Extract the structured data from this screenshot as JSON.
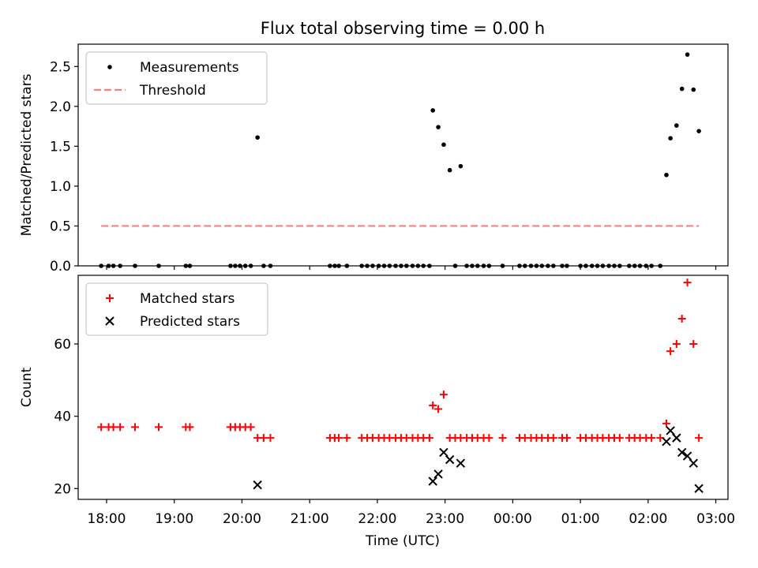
{
  "figure": {
    "title": "Flux total observing time = 0.00 h",
    "xlabel": "Time (UTC)",
    "x_ticks": [
      "18:00",
      "19:00",
      "20:00",
      "21:00",
      "22:00",
      "23:00",
      "00:00",
      "01:00",
      "02:00",
      "03:00"
    ]
  },
  "colors": {
    "threshold": "#ff7f7f",
    "matched": "#ff0000",
    "predicted": "#000000",
    "measurement": "#000000"
  },
  "chart_data": [
    {
      "type": "scatter",
      "ylabel": "Matched/Predicted stars",
      "xlim_hours": [
        17.58,
        27.18
      ],
      "ylim": [
        0,
        2.78
      ],
      "y_ticks": [
        0.0,
        0.5,
        1.0,
        1.5,
        2.0,
        2.5
      ],
      "y_tick_labels": [
        "0.0",
        "0.5",
        "1.0",
        "1.5",
        "2.0",
        "2.5"
      ],
      "legend": {
        "placement": "upper-left",
        "entries": [
          "Measurements",
          "Threshold"
        ]
      },
      "series": [
        {
          "name": "Measurements",
          "marker": "dot",
          "points": [
            [
              17.92,
              0
            ],
            [
              18.03,
              0
            ],
            [
              18.1,
              0
            ],
            [
              18.2,
              0
            ],
            [
              18.42,
              0
            ],
            [
              18.77,
              0
            ],
            [
              19.17,
              0
            ],
            [
              19.23,
              0
            ],
            [
              19.83,
              0
            ],
            [
              19.9,
              0
            ],
            [
              19.97,
              0
            ],
            [
              20.05,
              0
            ],
            [
              20.13,
              0
            ],
            [
              20.23,
              1.61
            ],
            [
              20.32,
              0
            ],
            [
              20.42,
              0
            ],
            [
              21.3,
              0
            ],
            [
              21.37,
              0
            ],
            [
              21.43,
              0
            ],
            [
              21.55,
              0
            ],
            [
              21.77,
              0
            ],
            [
              21.85,
              0
            ],
            [
              21.93,
              0
            ],
            [
              22.02,
              0
            ],
            [
              22.1,
              0
            ],
            [
              22.18,
              0
            ],
            [
              22.27,
              0
            ],
            [
              22.35,
              0
            ],
            [
              22.43,
              0
            ],
            [
              22.52,
              0
            ],
            [
              22.6,
              0
            ],
            [
              22.68,
              0
            ],
            [
              22.77,
              0
            ],
            [
              22.82,
              1.95
            ],
            [
              22.9,
              1.74
            ],
            [
              22.98,
              1.52
            ],
            [
              23.07,
              1.2
            ],
            [
              23.15,
              0
            ],
            [
              23.23,
              1.25
            ],
            [
              23.32,
              0
            ],
            [
              23.4,
              0
            ],
            [
              23.48,
              0
            ],
            [
              23.57,
              0
            ],
            [
              23.65,
              0
            ],
            [
              23.85,
              0
            ],
            [
              24.1,
              0
            ],
            [
              24.18,
              0
            ],
            [
              24.27,
              0
            ],
            [
              24.35,
              0
            ],
            [
              24.43,
              0
            ],
            [
              24.52,
              0
            ],
            [
              24.6,
              0
            ],
            [
              24.73,
              0
            ],
            [
              24.8,
              0
            ],
            [
              25.0,
              0
            ],
            [
              25.08,
              0
            ],
            [
              25.17,
              0
            ],
            [
              25.25,
              0
            ],
            [
              25.33,
              0
            ],
            [
              25.42,
              0
            ],
            [
              25.5,
              0
            ],
            [
              25.58,
              0
            ],
            [
              25.72,
              0
            ],
            [
              25.8,
              0
            ],
            [
              25.88,
              0
            ],
            [
              25.97,
              0
            ],
            [
              26.05,
              0
            ],
            [
              26.18,
              0
            ],
            [
              26.27,
              1.14
            ],
            [
              26.33,
              1.6
            ],
            [
              26.42,
              1.76
            ],
            [
              26.5,
              2.22
            ],
            [
              26.58,
              2.65
            ],
            [
              26.67,
              2.21
            ],
            [
              26.75,
              1.69
            ]
          ]
        },
        {
          "name": "Threshold",
          "style": "dashed",
          "x_range": [
            17.92,
            26.75
          ],
          "value": 0.5
        }
      ]
    },
    {
      "type": "scatter",
      "ylabel": "Count",
      "xlim_hours": [
        17.58,
        27.18
      ],
      "ylim": [
        17,
        79
      ],
      "y_ticks": [
        20,
        40,
        60
      ],
      "y_tick_labels": [
        "20",
        "40",
        "60"
      ],
      "legend": {
        "placement": "upper-left",
        "entries": [
          "Matched stars",
          "Predicted stars"
        ]
      },
      "series": [
        {
          "name": "Matched stars",
          "marker": "plus",
          "points": [
            [
              17.92,
              37
            ],
            [
              18.03,
              37
            ],
            [
              18.1,
              37
            ],
            [
              18.2,
              37
            ],
            [
              18.42,
              37
            ],
            [
              18.77,
              37
            ],
            [
              19.17,
              37
            ],
            [
              19.23,
              37
            ],
            [
              19.83,
              37
            ],
            [
              19.9,
              37
            ],
            [
              19.97,
              37
            ],
            [
              20.05,
              37
            ],
            [
              20.13,
              37
            ],
            [
              20.23,
              34
            ],
            [
              20.32,
              34
            ],
            [
              20.42,
              34
            ],
            [
              21.3,
              34
            ],
            [
              21.37,
              34
            ],
            [
              21.43,
              34
            ],
            [
              21.55,
              34
            ],
            [
              21.77,
              34
            ],
            [
              21.85,
              34
            ],
            [
              21.93,
              34
            ],
            [
              22.02,
              34
            ],
            [
              22.1,
              34
            ],
            [
              22.18,
              34
            ],
            [
              22.27,
              34
            ],
            [
              22.35,
              34
            ],
            [
              22.43,
              34
            ],
            [
              22.52,
              34
            ],
            [
              22.6,
              34
            ],
            [
              22.68,
              34
            ],
            [
              22.77,
              34
            ],
            [
              22.82,
              43
            ],
            [
              22.9,
              42
            ],
            [
              22.98,
              46
            ],
            [
              23.07,
              34
            ],
            [
              23.15,
              34
            ],
            [
              23.23,
              34
            ],
            [
              23.32,
              34
            ],
            [
              23.4,
              34
            ],
            [
              23.48,
              34
            ],
            [
              23.57,
              34
            ],
            [
              23.65,
              34
            ],
            [
              23.85,
              34
            ],
            [
              24.1,
              34
            ],
            [
              24.18,
              34
            ],
            [
              24.27,
              34
            ],
            [
              24.35,
              34
            ],
            [
              24.43,
              34
            ],
            [
              24.52,
              34
            ],
            [
              24.6,
              34
            ],
            [
              24.73,
              34
            ],
            [
              24.8,
              34
            ],
            [
              25.0,
              34
            ],
            [
              25.08,
              34
            ],
            [
              25.17,
              34
            ],
            [
              25.25,
              34
            ],
            [
              25.33,
              34
            ],
            [
              25.42,
              34
            ],
            [
              25.5,
              34
            ],
            [
              25.58,
              34
            ],
            [
              25.72,
              34
            ],
            [
              25.8,
              34
            ],
            [
              25.88,
              34
            ],
            [
              25.97,
              34
            ],
            [
              26.05,
              34
            ],
            [
              26.18,
              34
            ],
            [
              26.27,
              38
            ],
            [
              26.33,
              58
            ],
            [
              26.42,
              60
            ],
            [
              26.5,
              67
            ],
            [
              26.58,
              77
            ],
            [
              26.67,
              60
            ],
            [
              26.75,
              34
            ]
          ]
        },
        {
          "name": "Predicted stars",
          "marker": "x",
          "points": [
            [
              20.23,
              21
            ],
            [
              22.82,
              22
            ],
            [
              22.9,
              24
            ],
            [
              22.98,
              30
            ],
            [
              23.07,
              28
            ],
            [
              23.23,
              27
            ],
            [
              26.27,
              33
            ],
            [
              26.33,
              36
            ],
            [
              26.42,
              34
            ],
            [
              26.5,
              30
            ],
            [
              26.58,
              29
            ],
            [
              26.67,
              27
            ],
            [
              26.75,
              20
            ]
          ]
        }
      ]
    }
  ]
}
